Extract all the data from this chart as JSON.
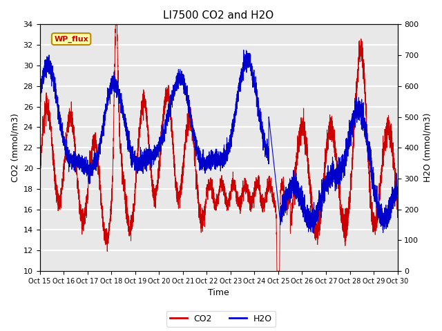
{
  "title": "LI7500 CO2 and H2O",
  "xlabel": "Time",
  "ylabel_left": "CO2 (mmol/m3)",
  "ylabel_right": "H2O (mmol/m3)",
  "ylim_left": [
    10,
    34
  ],
  "ylim_right": [
    0,
    800
  ],
  "yticks_left": [
    10,
    12,
    14,
    16,
    18,
    20,
    22,
    24,
    26,
    28,
    30,
    32,
    34
  ],
  "yticks_right": [
    0,
    100,
    200,
    300,
    400,
    500,
    600,
    700,
    800
  ],
  "xtick_labels": [
    "Oct 15",
    "Oct 16",
    "Oct 17",
    "Oct 18",
    "Oct 19",
    "Oct 20",
    "Oct 21",
    "Oct 22",
    "Oct 23",
    "Oct 24",
    "Oct 25",
    "Oct 26",
    "Oct 27",
    "Oct 28",
    "Oct 29",
    "Oct 30"
  ],
  "co2_color": "#cc0000",
  "h2o_color": "#0000cc",
  "legend_box_facecolor": "#ffffaa",
  "legend_box_edgecolor": "#bb8800",
  "legend_text": "WP_flux",
  "axes_facecolor": "#e8e8e8",
  "fig_facecolor": "#ffffff",
  "grid_color": "#ffffff",
  "n_points": 5000
}
